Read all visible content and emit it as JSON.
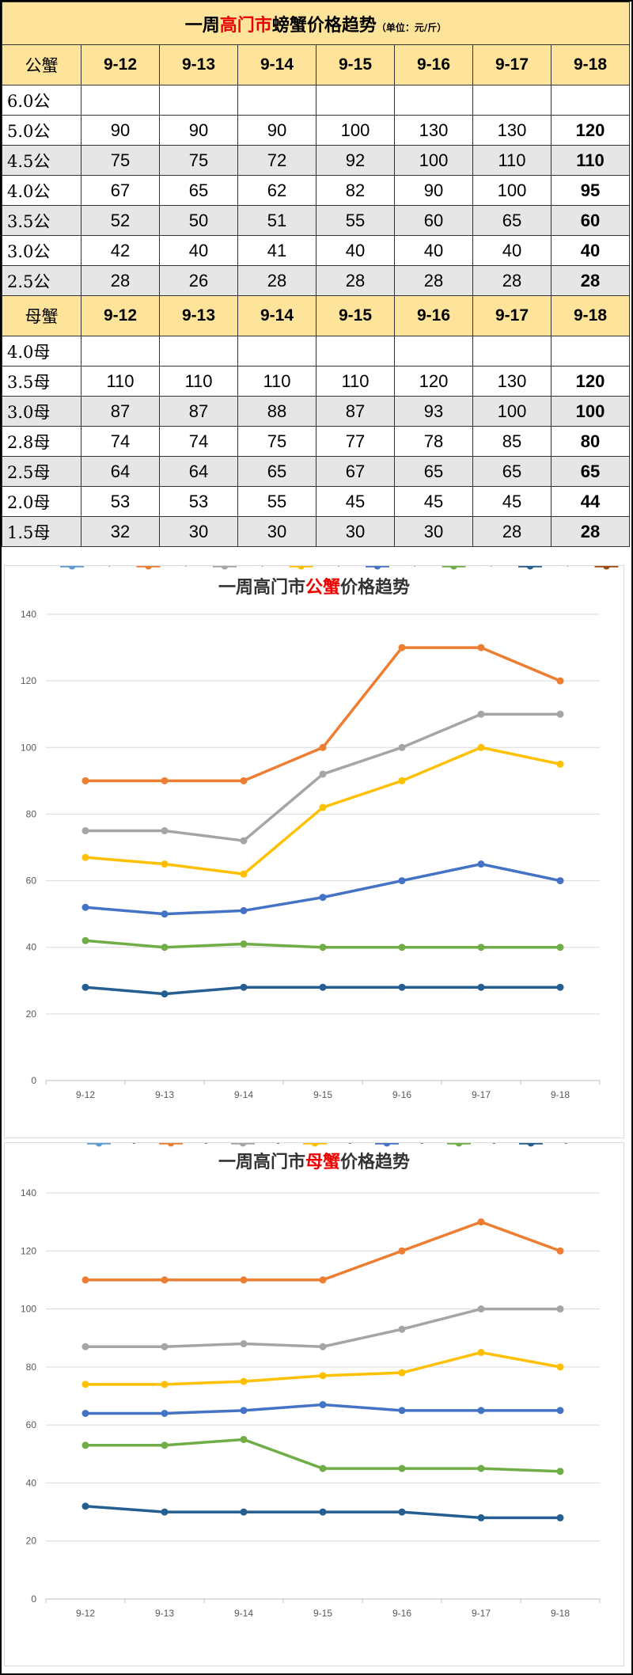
{
  "table": {
    "title_prefix": "一周",
    "title_red": "高门市",
    "title_suffix": "螃蟹价格趋势",
    "title_unit": "（单位：元/斤）",
    "dates": [
      "9-12",
      "9-13",
      "9-14",
      "9-15",
      "9-16",
      "9-17",
      "9-18"
    ],
    "male_header": "公蟹",
    "female_header": "母蟹",
    "male_rows": [
      {
        "label": "6.0公",
        "values": [
          "",
          "",
          "",
          "",
          "",
          "",
          ""
        ]
      },
      {
        "label": "5.0公",
        "values": [
          "90",
          "90",
          "90",
          "100",
          "130",
          "130",
          "120"
        ]
      },
      {
        "label": "4.5公",
        "values": [
          "75",
          "75",
          "72",
          "92",
          "100",
          "110",
          "110"
        ]
      },
      {
        "label": "4.0公",
        "values": [
          "67",
          "65",
          "62",
          "82",
          "90",
          "100",
          "95"
        ]
      },
      {
        "label": "3.5公",
        "values": [
          "52",
          "50",
          "51",
          "55",
          "60",
          "65",
          "60"
        ]
      },
      {
        "label": "3.0公",
        "values": [
          "42",
          "40",
          "41",
          "40",
          "40",
          "40",
          "40"
        ]
      },
      {
        "label": "2.5公",
        "values": [
          "28",
          "26",
          "28",
          "28",
          "28",
          "28",
          "28"
        ]
      }
    ],
    "female_rows": [
      {
        "label": "4.0母",
        "values": [
          "",
          "",
          "",
          "",
          "",
          "",
          ""
        ]
      },
      {
        "label": "3.5母",
        "values": [
          "110",
          "110",
          "110",
          "110",
          "120",
          "130",
          "120"
        ]
      },
      {
        "label": "3.0母",
        "values": [
          "87",
          "87",
          "88",
          "87",
          "93",
          "100",
          "100"
        ]
      },
      {
        "label": "2.8母",
        "values": [
          "74",
          "74",
          "75",
          "77",
          "78",
          "85",
          "80"
        ]
      },
      {
        "label": "2.5母",
        "values": [
          "64",
          "64",
          "65",
          "67",
          "65",
          "65",
          "65"
        ]
      },
      {
        "label": "2.0母",
        "values": [
          "53",
          "53",
          "55",
          "45",
          "45",
          "45",
          "44"
        ]
      },
      {
        "label": "1.5母",
        "values": [
          "32",
          "30",
          "30",
          "30",
          "30",
          "28",
          "28"
        ]
      }
    ]
  },
  "chart_data": [
    {
      "type": "line",
      "title_prefix": "一周高门市",
      "title_red": "公蟹",
      "title_suffix": "价格趋势",
      "categories": [
        "9-12",
        "9-13",
        "9-14",
        "9-15",
        "9-16",
        "9-17",
        "9-18"
      ],
      "ylim": [
        0,
        140
      ],
      "yticks": [
        0,
        20,
        40,
        60,
        80,
        100,
        120,
        140
      ],
      "grid": true,
      "legend": "bottom",
      "series": [
        {
          "name": "6.0公",
          "color": "#5b9bd5",
          "values": [
            null,
            null,
            null,
            null,
            null,
            null,
            null
          ]
        },
        {
          "name": "5.0公",
          "color": "#ed7d31",
          "values": [
            90,
            90,
            90,
            100,
            130,
            130,
            120
          ]
        },
        {
          "name": "4.5公",
          "color": "#a5a5a5",
          "values": [
            75,
            75,
            72,
            92,
            100,
            110,
            110
          ]
        },
        {
          "name": "4.0公",
          "color": "#ffc000",
          "values": [
            67,
            65,
            62,
            82,
            90,
            100,
            95
          ]
        },
        {
          "name": "3.5公",
          "color": "#4472c4",
          "values": [
            52,
            50,
            51,
            55,
            60,
            65,
            60
          ]
        },
        {
          "name": "3.0公",
          "color": "#70ad47",
          "values": [
            42,
            40,
            41,
            40,
            40,
            40,
            40
          ]
        },
        {
          "name": "2.5公",
          "color": "#255e91",
          "values": [
            28,
            26,
            28,
            28,
            28,
            28,
            28
          ]
        },
        {
          "name": "",
          "color": "#9e480e",
          "values": [
            null,
            null,
            null,
            null,
            null,
            null,
            null
          ]
        }
      ]
    },
    {
      "type": "line",
      "title_prefix": "一周高门市",
      "title_red": "母蟹",
      "title_suffix": "价格趋势",
      "categories": [
        "9-12",
        "9-13",
        "9-14",
        "9-15",
        "9-16",
        "9-17",
        "9-18"
      ],
      "ylim": [
        0,
        140
      ],
      "yticks": [
        0,
        20,
        40,
        60,
        80,
        100,
        120,
        140
      ],
      "grid": true,
      "legend": "bottom",
      "series": [
        {
          "name": "4.0母",
          "color": "#5b9bd5",
          "values": [
            null,
            null,
            null,
            null,
            null,
            null,
            null
          ]
        },
        {
          "name": "3.5母",
          "color": "#ed7d31",
          "values": [
            110,
            110,
            110,
            110,
            120,
            130,
            120
          ]
        },
        {
          "name": "3.0母",
          "color": "#a5a5a5",
          "values": [
            87,
            87,
            88,
            87,
            93,
            100,
            100
          ]
        },
        {
          "name": "2.8母",
          "color": "#ffc000",
          "values": [
            74,
            74,
            75,
            77,
            78,
            85,
            80
          ]
        },
        {
          "name": "2.5母",
          "color": "#4472c4",
          "values": [
            64,
            64,
            65,
            67,
            65,
            65,
            65
          ]
        },
        {
          "name": "2.0母",
          "color": "#70ad47",
          "values": [
            53,
            53,
            55,
            45,
            45,
            45,
            44
          ]
        },
        {
          "name": "1.5母",
          "color": "#255e91",
          "values": [
            32,
            30,
            30,
            30,
            30,
            28,
            28
          ]
        }
      ]
    }
  ]
}
